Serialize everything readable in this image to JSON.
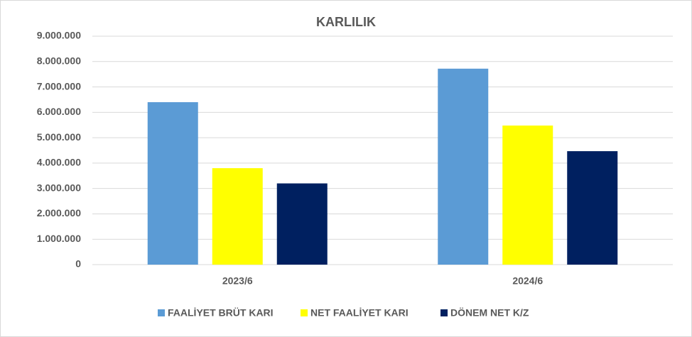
{
  "chart_data": {
    "type": "bar",
    "title": "KARLILIK",
    "categories": [
      "2023/6",
      "2024/6"
    ],
    "series": [
      {
        "name": "FAALİYET BRÜT KARI",
        "color": "#5b9bd5",
        "values": [
          6400000,
          7720000
        ]
      },
      {
        "name": "NET FAALİYET KARI",
        "color": "#ffff00",
        "values": [
          3800000,
          5480000
        ]
      },
      {
        "name": "DÖNEM NET K/Z",
        "color": "#002060",
        "values": [
          3200000,
          4470000
        ]
      }
    ],
    "ylim": [
      0,
      9000000
    ],
    "yticks": [
      0,
      {
        "value": 1000000,
        "label": "1.000.000"
      },
      {
        "value": 2000000,
        "label": "2.000.000"
      },
      {
        "value": 3000000,
        "label": "3.000.000"
      },
      {
        "value": 4000000,
        "label": "4.000.000"
      },
      {
        "value": 5000000,
        "label": "5.000.000"
      },
      {
        "value": 6000000,
        "label": "6.000.000"
      },
      {
        "value": 7000000,
        "label": "7.000.000"
      },
      {
        "value": 8000000,
        "label": "8.000.000"
      },
      {
        "value": 9000000,
        "label": "9.000.000"
      }
    ],
    "grid": true,
    "legend": "bottom"
  }
}
